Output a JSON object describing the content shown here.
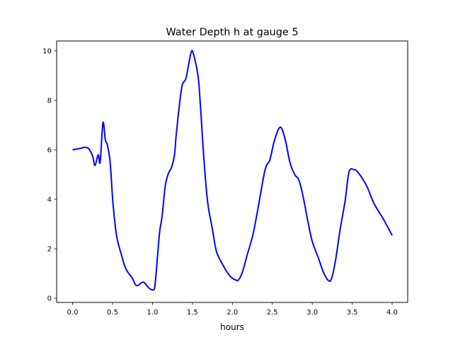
{
  "chart_data": {
    "type": "line",
    "title": "Water Depth h at gauge 5",
    "xlabel": "hours",
    "ylabel": "",
    "xlim": [
      -0.2,
      4.195
    ],
    "ylim": [
      -0.17,
      10.4
    ],
    "xticks": [
      0.0,
      0.5,
      1.0,
      1.5,
      2.0,
      2.5,
      3.0,
      3.5,
      4.0
    ],
    "xtick_labels": [
      "0.0",
      "0.5",
      "1.0",
      "1.5",
      "2.0",
      "2.5",
      "3.0",
      "3.5",
      "4.0"
    ],
    "yticks": [
      0,
      2,
      4,
      6,
      8,
      10
    ],
    "ytick_labels": [
      "0",
      "2",
      "4",
      "6",
      "8",
      "10"
    ],
    "grid": false,
    "series": [
      {
        "name": "h",
        "color": "#0000ff",
        "x": [
          0.0,
          0.1,
          0.15,
          0.2,
          0.25,
          0.28,
          0.32,
          0.345,
          0.38,
          0.41,
          0.435,
          0.47,
          0.505,
          0.55,
          0.61,
          0.665,
          0.745,
          0.8,
          0.885,
          0.95,
          1.0,
          1.03,
          1.065,
          1.09,
          1.12,
          1.16,
          1.2,
          1.24,
          1.275,
          1.3,
          1.365,
          1.42,
          1.48,
          1.51,
          1.57,
          1.6,
          1.64,
          1.69,
          1.75,
          1.8,
          1.88,
          1.97,
          2.04,
          2.08,
          2.13,
          2.19,
          2.26,
          2.33,
          2.41,
          2.47,
          2.52,
          2.58,
          2.62,
          2.67,
          2.72,
          2.78,
          2.83,
          2.88,
          2.94,
          3.0,
          3.08,
          3.14,
          3.2,
          3.24,
          3.29,
          3.35,
          3.41,
          3.46,
          3.52,
          3.57,
          3.68,
          3.77,
          3.89,
          4.0
        ],
        "y": [
          6.0,
          6.06,
          6.1,
          6.05,
          5.75,
          5.37,
          5.8,
          5.51,
          7.1,
          6.4,
          6.2,
          5.5,
          3.86,
          2.54,
          1.77,
          1.2,
          0.82,
          0.51,
          0.65,
          0.43,
          0.34,
          0.5,
          1.77,
          2.7,
          3.3,
          4.54,
          5.05,
          5.3,
          5.77,
          6.7,
          8.5,
          8.9,
          9.9,
          9.9,
          9.0,
          7.8,
          5.8,
          3.9,
          2.8,
          1.9,
          1.35,
          0.9,
          0.74,
          0.75,
          1.1,
          1.8,
          2.6,
          3.8,
          5.2,
          5.6,
          6.3,
          6.85,
          6.85,
          6.3,
          5.5,
          5.0,
          4.8,
          4.2,
          3.2,
          2.3,
          1.6,
          1.05,
          0.72,
          0.78,
          1.5,
          2.8,
          3.9,
          5.1,
          5.2,
          5.1,
          4.55,
          3.85,
          3.2,
          2.54
        ]
      }
    ]
  }
}
